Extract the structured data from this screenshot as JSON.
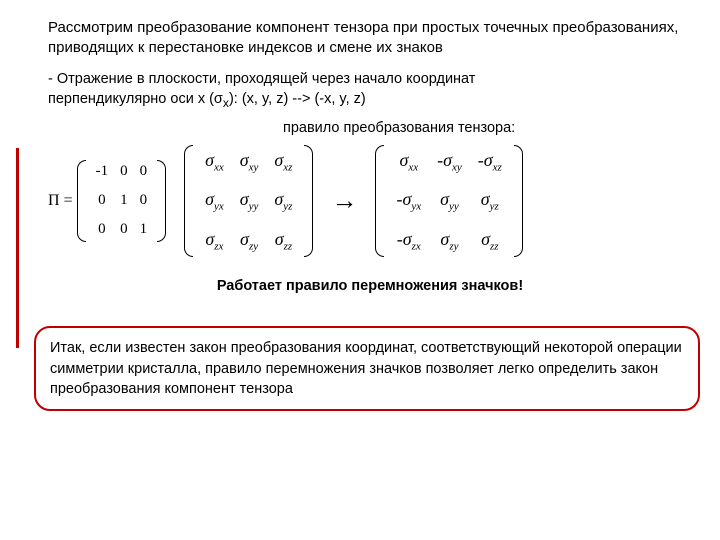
{
  "heading": "Рассмотрим преобразование компонент тензора при простых точечных преобразованиях, приводящих к перестановке индексов и смене их знаков",
  "reflection_line1": "- Отражение в плоскости, проходящей через начало координат",
  "reflection_line2_prefix": "перпендикулярно оси x (σ",
  "reflection_line2_sub": "x",
  "reflection_line2_suffix": "):    (x, y, z)  -->  (-x, y, z)",
  "rule_label": "правило преобразования тензора:",
  "pi": "П",
  "equals": "=",
  "matrix_pi": {
    "rows": [
      [
        "-1",
        "0",
        "0"
      ],
      [
        "0",
        "1",
        "0"
      ],
      [
        "0",
        "0",
        "1"
      ]
    ]
  },
  "sigma_left": {
    "rows": [
      [
        {
          "sign": "",
          "i": "xx"
        },
        {
          "sign": "",
          "i": "xy"
        },
        {
          "sign": "",
          "i": "xz"
        }
      ],
      [
        {
          "sign": "",
          "i": "yx"
        },
        {
          "sign": "",
          "i": "yy"
        },
        {
          "sign": "",
          "i": "yz"
        }
      ],
      [
        {
          "sign": "",
          "i": "zx"
        },
        {
          "sign": "",
          "i": "zy"
        },
        {
          "sign": "",
          "i": "zz"
        }
      ]
    ]
  },
  "sigma_right": {
    "rows": [
      [
        {
          "sign": "",
          "i": "xx"
        },
        {
          "sign": "-",
          "i": "xy"
        },
        {
          "sign": "-",
          "i": "xz"
        }
      ],
      [
        {
          "sign": "-",
          "i": "yx"
        },
        {
          "sign": "",
          "i": "yy"
        },
        {
          "sign": "",
          "i": "yz"
        }
      ],
      [
        {
          "sign": "-",
          "i": "zx"
        },
        {
          "sign": "",
          "i": "zy"
        },
        {
          "sign": "",
          "i": "zz"
        }
      ]
    ]
  },
  "arrow": "→",
  "bold_rule": "Работает правило перемножения значков!",
  "callout": "Итак, если известен закон преобразования координат, соответствующий некоторой операции симметрии кристалла, правило перемножения значков позволяет легко определить закон преобразования компонент тензора",
  "colors": {
    "callout_border": "#c00000",
    "text": "#000000",
    "bg": "#ffffff"
  }
}
